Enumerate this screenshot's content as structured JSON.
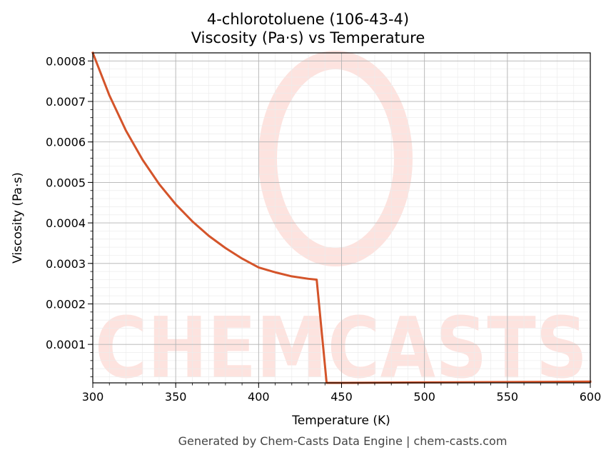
{
  "chart_data": {
    "type": "line",
    "title": "4-chlorotoluene (106-43-4)",
    "subtitle": "Viscosity (Pa·s) vs Temperature",
    "xlabel": "Temperature (K)",
    "ylabel": "Viscosity (Pa·s)",
    "xlim": [
      300,
      600
    ],
    "ylim": [
      5e-06,
      0.00082
    ],
    "x_ticks": [
      "300",
      "350",
      "400",
      "450",
      "500",
      "550",
      "600"
    ],
    "y_ticks": [
      "0.0001",
      "0.0002",
      "0.0003",
      "0.0004",
      "0.0005",
      "0.0006",
      "0.0007",
      "0.0008"
    ],
    "grid": true,
    "line_color": "#d4542a",
    "series": [
      {
        "x": [
          300,
          310,
          320,
          330,
          340,
          350,
          360,
          370,
          380,
          390,
          400,
          410,
          420,
          430,
          435,
          441,
          450,
          500,
          550,
          600
        ],
        "y": [
          0.00082,
          0.000715,
          0.000628,
          0.000556,
          0.000496,
          0.000446,
          0.000404,
          0.000368,
          0.000338,
          0.000312,
          0.00029,
          0.000278,
          0.000268,
          0.000262,
          0.00026,
          5e-06,
          5e-06,
          6e-06,
          7e-06,
          8e-06
        ]
      }
    ]
  },
  "watermark": {
    "text": "CHEMCASTS",
    "color": "#fde3df"
  },
  "footer": "Generated by Chem-Casts Data Engine | chem-casts.com"
}
